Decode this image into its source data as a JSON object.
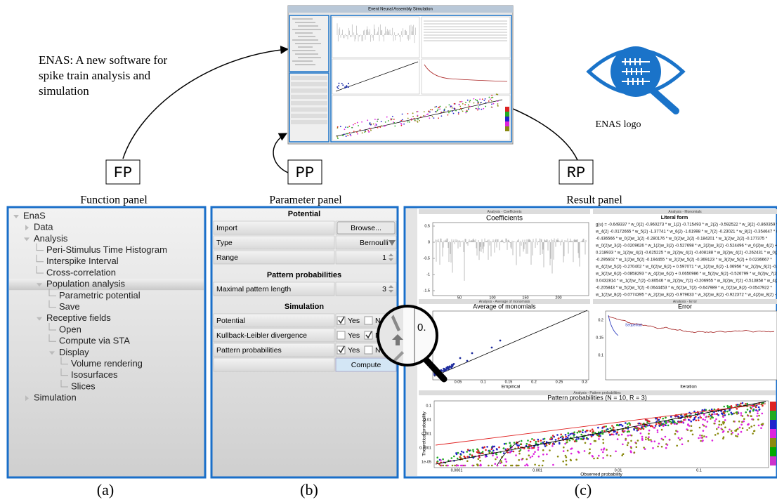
{
  "header": {
    "tagline": [
      "ENAS: A new software for",
      "spike train analysis and",
      "simulation"
    ],
    "logo_caption": "ENAS logo",
    "window_title": "Event Neural Assembly Simulation"
  },
  "callouts": [
    {
      "code": "FP",
      "label": "Function panel"
    },
    {
      "code": "PP",
      "label": "Parameter panel"
    },
    {
      "code": "RP",
      "label": "Result panel"
    }
  ],
  "function_panel": {
    "items": [
      "EnaS",
      "Data",
      "Analysis",
      "Peri-Stimulus Time Histogram",
      "Interspike Interval",
      "Cross-correlation",
      "Population analysis",
      "Parametric potential",
      "Save",
      "Receptive fields",
      "Open",
      "Compute via STA",
      "Display",
      "Volume rendering",
      "Isosurfaces",
      "Slices",
      "Simulation"
    ]
  },
  "parameter_panel": {
    "sections": [
      {
        "title": "Potential",
        "rows": [
          [
            "Import",
            "Browse..."
          ],
          [
            "Type",
            "Bernoulli"
          ],
          [
            "Range",
            "1"
          ]
        ]
      },
      {
        "title": "Pattern probabilities",
        "rows": [
          [
            "Maximal pattern length",
            "3"
          ]
        ]
      },
      {
        "title": "Simulation",
        "rows": [
          [
            "Potential",
            "Yes",
            "No"
          ],
          [
            "Kullback-Leibler divergence",
            "Yes",
            "No"
          ],
          [
            "Pattern probabilities",
            "Yes",
            "No"
          ]
        ]
      }
    ],
    "button": "Compute"
  },
  "result_panel": {
    "coefficients": {
      "header": "Analysis - Coefficients",
      "title": "Coefficients",
      "yticks": [
        "0.5",
        "0",
        "-0.5",
        "-1",
        "-1.5"
      ],
      "xticks": [
        "50",
        "100",
        "150",
        "200"
      ]
    },
    "literal": {
      "header": "Analysis - Monomials",
      "title": "Literal form",
      "lines": [
        "g(u) = -0.649337 * w_0(2) -0.960273 * w_1(2) -0.715493 * w_2(2) -0.592522 * w_3(2) -0.860359 *",
        "w_4(2) -0.0172665 * w_5(2) -1.37741 * w_6(2) -1.61998 * w_7(2) -0.23021 * w_8(2) -0.354647 * w_9(2)",
        "-0.436566 * w_0(2)w_1(2) -0.280176 * w_0(2)w_2(2) -0.184201 * w_1(2)w_2(2) -0.177375 *",
        "w_0(2)w_3(2) -0.0209626 * w_1(2)w_3(2) -0.527698 * w_2(2)w_3(2) -0.524496 * w_0(2)w_4(2) +",
        "0.218933 * w_1(2)w_4(2) -0.625225 * w_2(2)w_4(2) -0.408188 * w_3(2)w_4(2) -0.262431 * w_0(2)w_5(2)",
        "-0.295602 * w_1(2)w_5(2) -0.194455 * w_2(2)w_5(2) -0.369123 * w_3(2)w_5(2) + 0.0236667 *",
        "w_4(2)w_5(2) -0.270402 * w_0(2)w_6(2) + 0.597071 * w_1(2)w_6(2) -1.06956 * w_2(2)w_6(2) -0.33754",
        "w_3(2)w_6(2) -0.0858293 * w_4(2)w_6(2) + 0.0650986 * w_5(2)w_6(2) -0.526799 * w_0(2)w_7(2) +",
        "0.0432814 * w_1(2)w_7(2) -0.80546 * w_2(2)w_7(2) -0.206955 * w_3(2)w_7(2) -0.513858 * w_4(2)w_7(2)",
        "-0.205843 * w_5(2)w_7(2) -0.0644453 * w_6(2)w_7(2) -0.647989 * w_0(2)w_8(2) -0.0547922 *",
        "w_1(2)w_8(2) -0.0774395 * w_2(2)w_8(2) -0.979633 * w_3(2)w_8(2) -0.922372 * w_4(2)w_8(2) -1.11758"
      ]
    },
    "average": {
      "header": "Analysis - Average of monomials",
      "title": "Average of monomials",
      "xlabel": "Empirical",
      "xticks": [
        "0.05",
        "0.1",
        "0.15",
        "0.2",
        "0.25",
        "0.3"
      ],
      "yticks": [
        "0.05"
      ],
      "zoom_text": "0."
    },
    "error": {
      "header": "Analysis - Error",
      "title": "Error",
      "xlabel": "Iteration",
      "yticks": [
        "0.2",
        "0.15",
        "0.1"
      ],
      "legend": "Sequential"
    },
    "patterns": {
      "header": "Analysis - Pattern probabilities",
      "title": "Pattern probabilities (N = 10, R = 3)",
      "xlabel": "Observed probability",
      "ylabel": "Theoretical probability",
      "yticks": [
        "0.1",
        "0.01",
        "0.001",
        "0.0001",
        "1e-05"
      ],
      "xticks": [
        "0.0001",
        "0.001",
        "0.01",
        "0.1"
      ]
    }
  },
  "captions": [
    "(a)",
    "(b)",
    "(c)"
  ]
}
